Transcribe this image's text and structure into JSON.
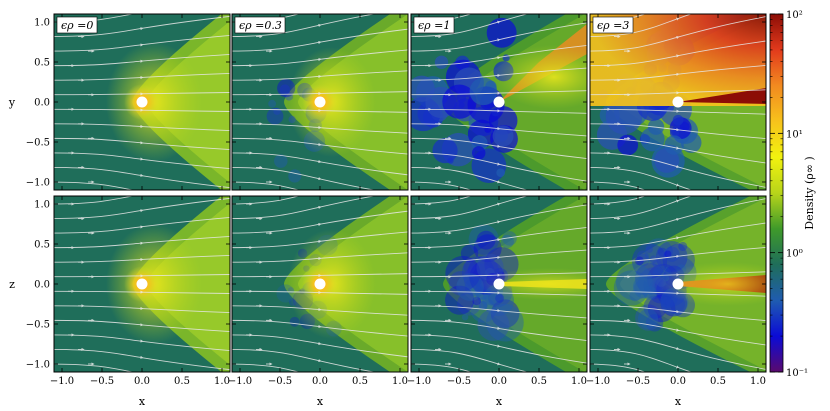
{
  "chart_data": {
    "type": "heatmap",
    "title": "",
    "panel_labels": [
      "ϵρ =0",
      "ϵρ =0.3",
      "ϵρ =1",
      "ϵρ =3"
    ],
    "rows": [
      {
        "ylabel": "y",
        "plane": "x-y"
      },
      {
        "ylabel": "z",
        "plane": "x-z"
      }
    ],
    "xlabel": "x",
    "xlim": [
      -1.1,
      1.1
    ],
    "ylim": [
      -1.1,
      1.1
    ],
    "x_ticks": [
      "−1.0",
      "−0.5",
      "0.0",
      "0.5",
      "1.0"
    ],
    "x_tick_values": [
      -1.0,
      -0.5,
      0.0,
      0.5,
      1.0
    ],
    "y_ticks": [
      "1.0",
      "0.5",
      "0.0",
      "−0.5",
      "−1.0"
    ],
    "y_tick_values": [
      1.0,
      0.5,
      0.0,
      -0.5,
      -1.0
    ],
    "colorbar": {
      "label": "Density  (ρ∞ )",
      "scale": "log",
      "range": [
        0.1,
        100
      ],
      "ticks": [
        {
          "value": 100,
          "label": "10²"
        },
        {
          "value": 10,
          "label": "10¹"
        },
        {
          "value": 1,
          "label": "10⁰"
        },
        {
          "value": 0.1,
          "label": "10⁻¹"
        }
      ],
      "colors": [
        "#5a0a6e",
        "#0b0bd6",
        "#1f5cb0",
        "#1f6e5a",
        "#3f9a2a",
        "#b8d51a",
        "#f2f20f",
        "#f6c21c",
        "#f28a20",
        "#e23a1c",
        "#8c0d06"
      ]
    },
    "grid": false,
    "legend": "none",
    "colors": {
      "ambient": "#1f6e5a",
      "sphere": "#ffffff",
      "streamline": "#e8e8e8"
    }
  }
}
